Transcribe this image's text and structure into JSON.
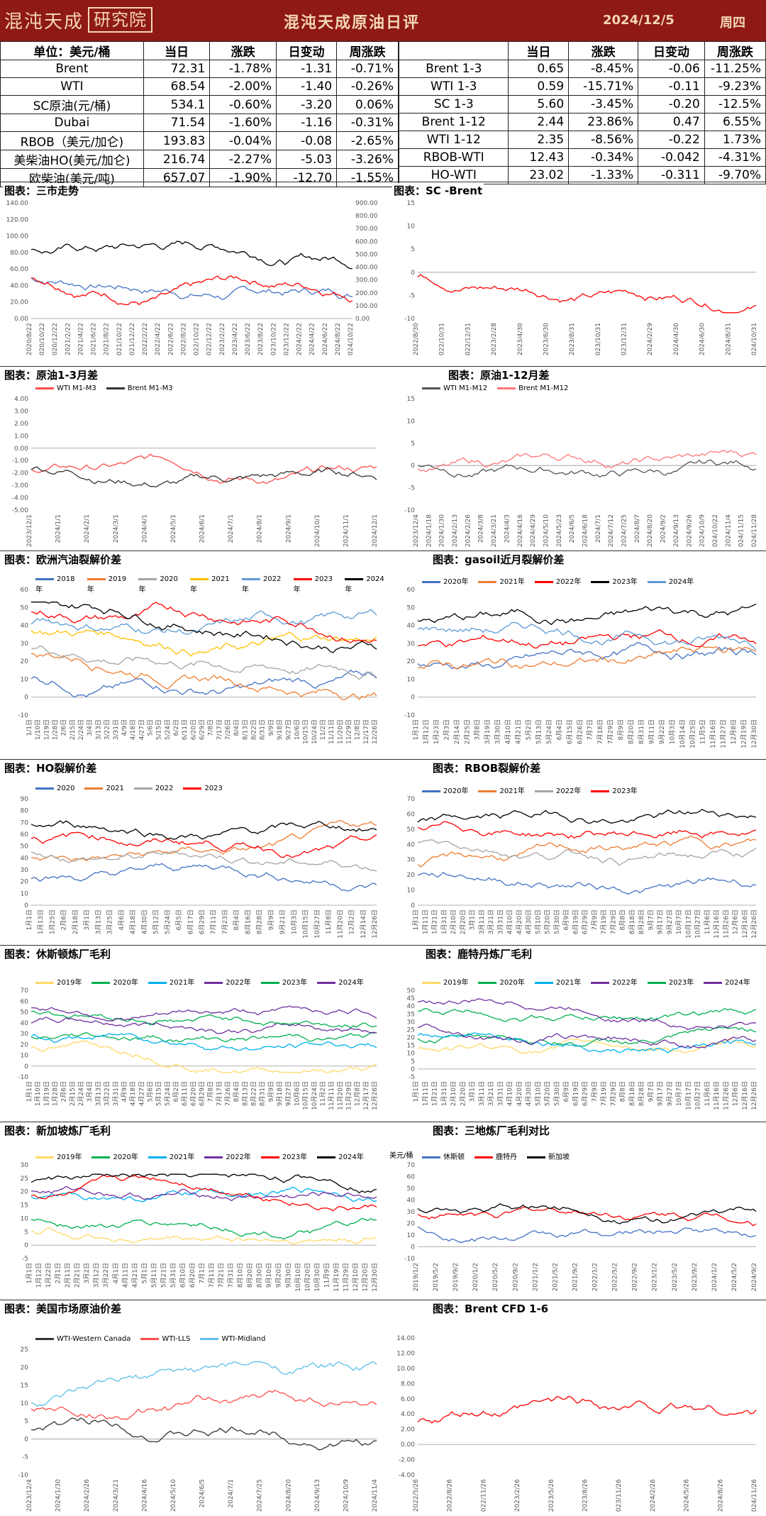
{
  "header": {
    "logo_box": "研究院",
    "logo_text": "混沌天成",
    "title": "混沌天成原油日评",
    "date": "2024/12/5",
    "weekday": "周四"
  },
  "table_left": {
    "headers": [
      "单位：美元/桶",
      "当日",
      "涨跌",
      "日变动",
      "周涨跌"
    ],
    "rows": [
      [
        "Brent",
        "72.31",
        "-1.78%",
        "-1.31",
        "-0.71%"
      ],
      [
        "WTI",
        "68.54",
        "-2.00%",
        "-1.40",
        "-0.26%"
      ],
      [
        "SC原油(元/桶)",
        "534.1",
        "-0.60%",
        "-3.20",
        "0.06%"
      ],
      [
        "Dubai",
        "71.54",
        "-1.60%",
        "-1.16",
        "-0.31%"
      ],
      [
        "RBOB（美元/加仑)",
        "193.83",
        "-0.04%",
        "-0.08",
        "-2.65%"
      ],
      [
        "美柴油HO(美元/加仑)",
        "216.74",
        "-2.27%",
        "-5.03",
        "-3.26%"
      ],
      [
        "欧柴油(美元/吨)",
        "657.07",
        "-1.90%",
        "-12.70",
        "-1.55%"
      ]
    ]
  },
  "table_right": {
    "headers": [
      "",
      "当日",
      "涨跌",
      "日变动",
      "周涨跌"
    ],
    "rows": [
      [
        "Brent 1-3",
        "0.65",
        "-8.45%",
        "-0.06",
        "-11.25%"
      ],
      [
        "WTI 1-3",
        "0.59",
        "-15.71%",
        "-0.11",
        "-9.23%"
      ],
      [
        "SC 1-3",
        "5.60",
        "-3.45%",
        "-0.20",
        "-12.5%"
      ],
      [
        "Brent 1-12",
        "2.44",
        "23.86%",
        "0.47",
        "6.55%"
      ],
      [
        "WTI 1-12",
        "2.35",
        "-8.56%",
        "-0.22",
        "1.73%"
      ],
      [
        "RBOB-WTI",
        "12.43",
        "-0.34%",
        "-0.042",
        "-4.31%"
      ],
      [
        "HO-WTI",
        "23.02",
        "-1.33%",
        "-0.311",
        "-9.70%"
      ]
    ]
  },
  "sections": [
    {
      "title": "图表：三市走势"
    },
    {
      "title": "图表：SC -Brent"
    },
    {
      "title": "图表：原油1-3月差"
    },
    {
      "title": "图表：原油1-12月差"
    },
    {
      "title": "图表：欧洲汽油裂解价差"
    },
    {
      "title": "图表：gasoil近月裂解价差"
    },
    {
      "title": "图表：HO裂解价差"
    },
    {
      "title": "图表：RBOB裂解价差"
    },
    {
      "title": "图表：休斯顿炼厂毛利"
    },
    {
      "title": "图表：鹿特丹炼厂毛利"
    },
    {
      "title": "图表：新加坡炼厂毛利"
    },
    {
      "title": "图表：三地炼厂毛利对比"
    },
    {
      "title": "图表：美国市场原油价差"
    },
    {
      "title": "图表：Brent CFD 1-6"
    }
  ],
  "chart_data": [
    {
      "id": "c1",
      "type": "line",
      "yticks": [
        "0.00",
        "20.00",
        "40.00",
        "60.00",
        "80.00",
        "100.00",
        "120.00",
        "140.00"
      ],
      "y2ticks": [
        "0.00",
        "100.00",
        "200.00",
        "300.00",
        "400.00",
        "500.00",
        "600.00",
        "700.00",
        "800.00",
        "900.00"
      ],
      "ylim": [
        0,
        140
      ],
      "y2lim": [
        0,
        900
      ],
      "xticks": [
        "2020/8/22",
        "2020/10/22",
        "2020/12/22",
        "2021/2/22",
        "2021/4/22",
        "2021/6/22",
        "2021/8/22",
        "2021/10/22",
        "2021/12/22",
        "2022/2/22",
        "2022/4/22",
        "2022/6/22",
        "2022/8/22",
        "2022/10/22",
        "2022/12/22",
        "2023/2/22",
        "2023/4/22",
        "2023/6/22",
        "2023/8/22",
        "2023/10/22",
        "2023/12/22",
        "2024/2/22",
        "2024/4/22",
        "2024/6/22",
        "2024/8/22",
        "2024/10/22"
      ],
      "series": [
        {
          "color": "#4472c4"
        },
        {
          "color": "#ff0000"
        },
        {
          "color": "#000000",
          "axis": "right"
        }
      ]
    },
    {
      "id": "c2",
      "type": "line",
      "yticks": [
        "-10",
        "-5",
        "0",
        "5",
        "10",
        "15"
      ],
      "ylim": [
        -10,
        15
      ],
      "xticks": [
        "2022/8/30",
        "2022/10/31",
        "2022/12/31",
        "2023/2/28",
        "2023/4/30",
        "2023/6/30",
        "2023/8/31",
        "2023/10/31",
        "2023/12/31",
        "2024/2/29",
        "2024/4/30",
        "2024/6/30",
        "2024/8/31",
        "2024/10/31"
      ],
      "series": [
        {
          "color": "#ff0000"
        }
      ]
    },
    {
      "id": "c3",
      "type": "line",
      "yticks": [
        "-5.00",
        "-4.00",
        "-3.00",
        "-2.00",
        "-1.00",
        "0.00",
        "1.00",
        "2.00",
        "3.00",
        "4.00"
      ],
      "ylim": [
        -5,
        4
      ],
      "xticks": [
        "2023/12/1",
        "2024/1/1",
        "2024/2/1",
        "2024/3/1",
        "2024/4/1",
        "2024/5/1",
        "2024/6/1",
        "2024/7/1",
        "2024/8/1",
        "2024/9/1",
        "2024/10/1",
        "2024/11/1",
        "2024/12/1"
      ],
      "series": [
        {
          "name": "WTI M1-M3",
          "color": "#ff4d4d"
        },
        {
          "name": "Brent M1-M3",
          "color": "#333333"
        }
      ]
    },
    {
      "id": "c4",
      "type": "line",
      "yticks": [
        "-10",
        "-5",
        "0",
        "5",
        "10",
        "15"
      ],
      "ylim": [
        -10,
        15
      ],
      "xticks": [
        "2023/12/4",
        "2024/1/18",
        "2024/1/30",
        "2024/2/13",
        "2024/2/26",
        "2024/3/8",
        "2024/3/21",
        "2024/4/3",
        "2024/4/16",
        "2024/4/29",
        "2024/5/10",
        "2024/5/23",
        "2024/6/5",
        "2024/6/18",
        "2024/7/1",
        "2024/7/12",
        "2024/7/25",
        "2024/8/7",
        "2024/8/20",
        "2024/9/2",
        "2024/9/13",
        "2024/9/26",
        "2024/10/9",
        "2024/10/22",
        "2024/11/4",
        "2024/11/15",
        "2024/11/28"
      ],
      "series": [
        {
          "name": "WTI M1-M12",
          "color": "#555555"
        },
        {
          "name": "Brent M1-M12",
          "color": "#ff7777"
        }
      ]
    },
    {
      "id": "c5",
      "type": "line",
      "yticks": [
        "-10",
        "0",
        "10",
        "20",
        "30",
        "40",
        "50",
        "60"
      ],
      "ylim": [
        -10,
        60
      ],
      "xticks": [
        "1/1日",
        "1/10日",
        "1/19日",
        "1/28日",
        "2/6日",
        "2/15日",
        "2/24日",
        "3/4日",
        "3/13日",
        "3/22日",
        "3/31日",
        "4/9日",
        "4/18日",
        "4/27日",
        "5/6日",
        "5/15日",
        "5/24日",
        "6/2日",
        "6/11日",
        "6/20日",
        "6/29日",
        "7/8日",
        "7/17日",
        "7/26日",
        "8/4日",
        "8/13日",
        "8/22日",
        "8/31日",
        "9/9日",
        "9/18日",
        "9/27日",
        "10/6日",
        "10/15日",
        "10/24日",
        "11/2日",
        "11/11日",
        "11/20日",
        "11/29日",
        "12/8日",
        "12/17日",
        "12/26日"
      ],
      "series": [
        {
          "name": "2018年",
          "color": "#4472c4"
        },
        {
          "name": "2019年",
          "color": "#ed7d31"
        },
        {
          "name": "2020年",
          "color": "#a5a5a5"
        },
        {
          "name": "2021年",
          "color": "#ffc000"
        },
        {
          "name": "2022年",
          "color": "#5b9bd5"
        },
        {
          "name": "2023年",
          "color": "#ff0000"
        },
        {
          "name": "2024年",
          "color": "#000000"
        }
      ]
    },
    {
      "id": "c6",
      "type": "line",
      "yticks": [
        "-10",
        "0",
        "10",
        "20",
        "30",
        "40",
        "50",
        "60"
      ],
      "ylim": [
        -10,
        60
      ],
      "xticks": [
        "1月1日",
        "1月12日",
        "1月23日",
        "2月3日",
        "2月14日",
        "2月25日",
        "3月8日",
        "3月19日",
        "3月30日",
        "4月10日",
        "4月21日",
        "5月2日",
        "5月13日",
        "5月24日",
        "6月4日",
        "6月15日",
        "6月26日",
        "7月7日",
        "7月18日",
        "7月29日",
        "8月9日",
        "8月20日",
        "8月31日",
        "9月11日",
        "9月22日",
        "10月3日",
        "10月14日",
        "10月25日",
        "11月5日",
        "11月16日",
        "11月27日",
        "12月8日",
        "12月19日",
        "12月30日"
      ],
      "series": [
        {
          "name": "2020年",
          "color": "#4472c4"
        },
        {
          "name": "2021年",
          "color": "#ed7d31"
        },
        {
          "name": "2022年",
          "color": "#ff0000"
        },
        {
          "name": "2023年",
          "color": "#000000"
        },
        {
          "name": "2024年",
          "color": "#5b9bd5"
        }
      ]
    },
    {
      "id": "c7",
      "type": "line",
      "yticks": [
        "0",
        "10",
        "20",
        "30",
        "40",
        "50",
        "60",
        "70",
        "80",
        "90"
      ],
      "ylim": [
        0,
        90
      ],
      "xticks": [
        "1月1日",
        "1月13日",
        "1月25日",
        "2月6日",
        "2月18日",
        "3月1日",
        "3月13日",
        "3月25日",
        "4月6日",
        "4月18日",
        "4月30日",
        "5月12日",
        "5月24日",
        "6月5日",
        "6月17日",
        "6月29日",
        "7月11日",
        "7月23日",
        "8月4日",
        "8月16日",
        "8月28日",
        "9月9日",
        "9月21日",
        "10月3日",
        "10月15日",
        "10月27日",
        "11月8日",
        "11月20日",
        "12月2日",
        "12月14日",
        "12月26日"
      ],
      "series": [
        {
          "name": "2020",
          "color": "#4472c4"
        },
        {
          "name": "2021",
          "color": "#ed7d31"
        },
        {
          "name": "2022",
          "color": "#a5a5a5"
        },
        {
          "name": "2023",
          "color": "#ff0000"
        },
        {
          "name": "",
          "color": "#000000"
        }
      ]
    },
    {
      "id": "c8",
      "type": "line",
      "yticks": [
        "0",
        "10",
        "20",
        "30",
        "40",
        "50",
        "60",
        "70"
      ],
      "ylim": [
        0,
        70
      ],
      "xticks": [
        "1月1日",
        "1月11日",
        "1月21日",
        "1月31日",
        "2月10日",
        "2月20日",
        "3月1日",
        "3月11日",
        "3月21日",
        "3月31日",
        "4月10日",
        "4月20日",
        "4月30日",
        "5月10日",
        "5月20日",
        "5月30日",
        "6月9日",
        "6月19日",
        "6月29日",
        "7月9日",
        "7月19日",
        "7月29日",
        "8月8日",
        "8月18日",
        "8月28日",
        "9月7日",
        "9月17日",
        "9月27日",
        "10月7日",
        "10月17日",
        "10月27日",
        "11月6日",
        "11月16日",
        "11月26日",
        "12月6日",
        "12月16日",
        "12月26日"
      ],
      "series": [
        {
          "name": "2020年",
          "color": "#4472c4"
        },
        {
          "name": "2021年",
          "color": "#ed7d31"
        },
        {
          "name": "2022年",
          "color": "#a5a5a5"
        },
        {
          "name": "2023年",
          "color": "#ff0000"
        },
        {
          "name": "",
          "color": "#000000"
        }
      ]
    },
    {
      "id": "c9",
      "type": "line",
      "yticks": [
        "-10",
        "0",
        "10",
        "20",
        "30",
        "40",
        "50",
        "60",
        "70"
      ],
      "ylim": [
        -10,
        70
      ],
      "xticks": [
        "1月1日",
        "1月10日",
        "1月19日",
        "1月28日",
        "2月6日",
        "2月15日",
        "2月24日",
        "3月4日",
        "3月13日",
        "3月22日",
        "3月31日",
        "4月9日",
        "4月18日",
        "4月27日",
        "5月6日",
        "5月15日",
        "5月24日",
        "6月2日",
        "6月11日",
        "6月20日",
        "6月29日",
        "7月8日",
        "7月17日",
        "7月26日",
        "8月4日",
        "8月13日",
        "8月22日",
        "8月31日",
        "9月9日",
        "9月18日",
        "9月27日",
        "10月6日",
        "10月15日",
        "10月24日",
        "11月2日",
        "11月11日",
        "11月20日",
        "11月29日",
        "12月8日",
        "12月17日",
        "12月26日"
      ],
      "series": [
        {
          "name": "2019年",
          "color": "#ffd966"
        },
        {
          "name": "2020年",
          "color": "#00b050"
        },
        {
          "name": "2021年",
          "color": "#00b0f0"
        },
        {
          "name": "2022年",
          "color": "#7030a0"
        },
        {
          "name": "2023年",
          "color": "#00b050"
        },
        {
          "name": "2024年",
          "color": "#7030a0"
        }
      ]
    },
    {
      "id": "c10",
      "type": "line",
      "yticks": [
        "-5",
        "0",
        "5",
        "10",
        "15",
        "20",
        "25",
        "30",
        "35",
        "40",
        "45",
        "50"
      ],
      "ylim": [
        -5,
        50
      ],
      "xticks": [
        "1月1日",
        "1月11日",
        "1月21日",
        "1月31日",
        "2月10日",
        "2月20日",
        "3月1日",
        "3月11日",
        "3月21日",
        "3月31日",
        "4月10日",
        "4月20日",
        "4月30日",
        "5月10日",
        "5月20日",
        "5月30日",
        "6月9日",
        "6月19日",
        "6月29日",
        "7月9日",
        "7月19日",
        "7月29日",
        "8月8日",
        "8月18日",
        "8月28日",
        "9月7日",
        "9月17日",
        "9月27日",
        "10月7日",
        "10月17日",
        "10月27日",
        "11月6日",
        "11月16日",
        "11月26日",
        "12月6日",
        "12月16日",
        "12月26日"
      ],
      "series": [
        {
          "name": "2019年",
          "color": "#ffd966"
        },
        {
          "name": "2020年",
          "color": "#00b050"
        },
        {
          "name": "2021年",
          "color": "#00b0f0"
        },
        {
          "name": "2022年",
          "color": "#7030a0"
        },
        {
          "name": "2023年",
          "color": "#00b050"
        },
        {
          "name": "2024年",
          "color": "#7030a0"
        }
      ]
    },
    {
      "id": "c11",
      "type": "line",
      "yticks": [
        "-5",
        "0",
        "5",
        "10",
        "15",
        "20",
        "25",
        "30"
      ],
      "ylim": [
        -5,
        30
      ],
      "xticks": [
        "1月1日",
        "1月12日",
        "1月22日",
        "2月1日",
        "2月11日",
        "2月21日",
        "3月2日",
        "3月12日",
        "3月22日",
        "4月1日",
        "4月11日",
        "4月21日",
        "5月1日",
        "5月11日",
        "5月21日",
        "5月31日",
        "6月10日",
        "6月20日",
        "7月1日",
        "7月11日",
        "7月21日",
        "7月31日",
        "8月10日",
        "8月20日",
        "8月30日",
        "9月10日",
        "9月20日",
        "9月30日",
        "10月10日",
        "10月20日",
        "10月30日",
        "11月9日",
        "11月19日",
        "11月29日",
        "12月10日",
        "12月20日",
        "12月30日"
      ],
      "series": [
        {
          "name": "2019年",
          "color": "#ffd966"
        },
        {
          "name": "2020年",
          "color": "#00b050"
        },
        {
          "name": "2021年",
          "color": "#00b0f0"
        },
        {
          "name": "2022年",
          "color": "#7030a0"
        },
        {
          "name": "2023年",
          "color": "#ff0000"
        },
        {
          "name": "2024年",
          "color": "#000000"
        }
      ]
    },
    {
      "id": "c12",
      "type": "line",
      "unit": "美元/桶",
      "yticks": [
        "-10",
        "0",
        "10",
        "20",
        "30",
        "40",
        "50",
        "60",
        "70"
      ],
      "ylim": [
        -10,
        70
      ],
      "xticks": [
        "2019/1/2",
        "2019/5/2",
        "2019/9/2",
        "2020/1/2",
        "2020/5/2",
        "2020/9/2",
        "2021/1/2",
        "2021/5/2",
        "2021/9/2",
        "2022/1/2",
        "2022/5/2",
        "2022/9/2",
        "2023/1/2",
        "2023/5/2",
        "2023/9/2",
        "2024/1/2",
        "2024/5/2",
        "2024/9/2"
      ],
      "series": [
        {
          "name": "休斯顿",
          "color": "#4472c4"
        },
        {
          "name": "鹿特丹",
          "color": "#ff0000"
        },
        {
          "name": "新加坡",
          "color": "#000000"
        }
      ]
    },
    {
      "id": "c13",
      "type": "line",
      "yticks": [
        "-10",
        "-5",
        "0",
        "5",
        "10",
        "15",
        "20",
        "25"
      ],
      "ylim": [
        -10,
        25
      ],
      "xticks": [
        "2023/12/4",
        "2024/1/30",
        "2024/2/26",
        "2024/3/21",
        "2024/4/16",
        "2024/5/10",
        "2024/6/5",
        "2024/7/1",
        "2024/7/25",
        "2024/8/20",
        "2024/9/13",
        "2024/10/9",
        "2024/11/4"
      ],
      "series": [
        {
          "name": "WTI-Western Canada",
          "color": "#333333"
        },
        {
          "name": "WTI-LLS",
          "color": "#ff4d4d"
        },
        {
          "name": "WTI-Midland",
          "color": "#5bc0eb"
        }
      ]
    },
    {
      "id": "c14",
      "type": "line",
      "yticks": [
        "-4.00",
        "-2.00",
        "0.00",
        "2.00",
        "4.00",
        "6.00",
        "8.00",
        "10.00",
        "12.00",
        "14.00"
      ],
      "ylim": [
        -4,
        14
      ],
      "xticks": [
        "2022/5/26",
        "2022/8/26",
        "2022/11/26",
        "2023/2/26",
        "2023/5/26",
        "2023/8/26",
        "2023/11/26",
        "2024/2/26",
        "2024/5/26",
        "2024/8/26",
        "2024/11/26"
      ],
      "series": [
        {
          "color": "#ff0000"
        }
      ]
    }
  ]
}
